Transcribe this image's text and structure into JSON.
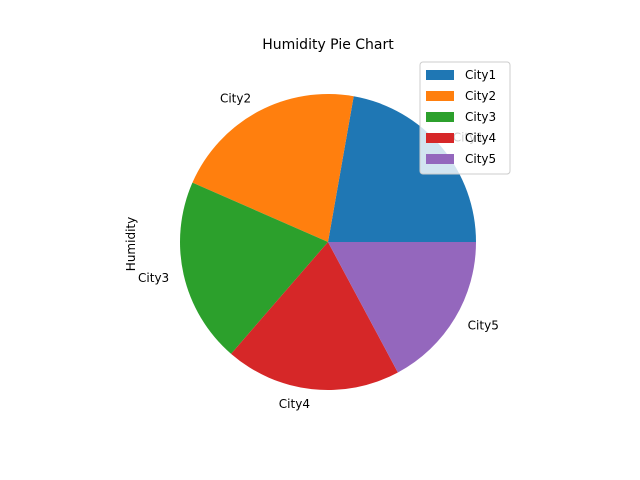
{
  "chart_data": {
    "type": "pie",
    "title": "Humidity Pie Chart",
    "ylabel": "Humidity",
    "categories": [
      "City1",
      "City2",
      "City3",
      "City4",
      "City5"
    ],
    "values": [
      22,
      21,
      20,
      19,
      17
    ],
    "colors": [
      "#1f77b4",
      "#ff7f0e",
      "#2ca02c",
      "#d62728",
      "#9467bd"
    ],
    "start_angle_deg": 0,
    "direction": "counterclockwise",
    "legend": {
      "placement": "top-right",
      "entries": [
        "City1",
        "City2",
        "City3",
        "City4",
        "City5"
      ]
    }
  }
}
